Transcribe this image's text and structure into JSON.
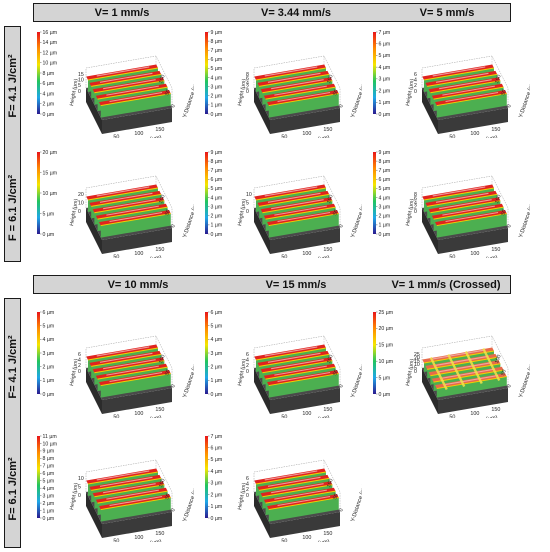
{
  "top_headers": [
    "V= 1 mm/s",
    "V= 3.44 mm/s",
    "V= 5 mm/s"
  ],
  "bottom_headers": [
    "V= 10 mm/s",
    "V= 15 mm/s",
    "V= 1 mm/s (Crossed)"
  ],
  "row_labels": [
    "F= 4.1 J/cm²",
    "F = 6.1 J/cm²",
    "F= 4.1 J/cm²",
    "F= 6.1 J/cm²"
  ],
  "axis_labels": {
    "x": "X-Distance (µm)",
    "y": "Y-Distance (µm)",
    "z": "Height (µm)"
  },
  "x_ticks": [
    "50",
    "100",
    "150"
  ],
  "panels": [
    {
      "id": "p11",
      "colorbar": [
        "16 µm",
        "14 µm",
        "12 µm",
        "10 µm",
        "8 µm",
        "6 µm",
        "4 µm",
        "2 µm",
        "0 µm"
      ],
      "z_ticks": [
        "15",
        "10",
        "5",
        "0"
      ],
      "y_ticks": [
        "100",
        "50",
        "0"
      ]
    },
    {
      "id": "p12",
      "colorbar": [
        "9 µm",
        "8 µm",
        "7 µm",
        "6 µm",
        "5 µm",
        "4 µm",
        "3 µm",
        "2 µm",
        "1 µm",
        "0 µm"
      ],
      "z_ticks": [
        "8",
        "6",
        "4",
        "2",
        "0"
      ],
      "y_ticks": [
        "100",
        "50",
        "0"
      ]
    },
    {
      "id": "p13",
      "colorbar": [
        "7 µm",
        "6 µm",
        "5 µm",
        "4 µm",
        "3 µm",
        "2 µm",
        "1 µm",
        "0 µm"
      ],
      "z_ticks": [
        "6",
        "4",
        "2",
        "0"
      ],
      "y_ticks": [
        "100",
        "50",
        "0"
      ]
    },
    {
      "id": "p21",
      "colorbar": [
        "20 µm",
        "15 µm",
        "10 µm",
        "5 µm",
        "0 µm"
      ],
      "z_ticks": [
        "20",
        "10",
        "0"
      ],
      "y_ticks": [
        "100",
        "50",
        "0"
      ]
    },
    {
      "id": "p22",
      "colorbar": [
        "9 µm",
        "8 µm",
        "7 µm",
        "6 µm",
        "5 µm",
        "4 µm",
        "3 µm",
        "2 µm",
        "1 µm",
        "0 µm"
      ],
      "z_ticks": [
        "10",
        "5",
        "0"
      ],
      "y_ticks": [
        "100",
        "50",
        "0"
      ]
    },
    {
      "id": "p23",
      "colorbar": [
        "9 µm",
        "8 µm",
        "7 µm",
        "6 µm",
        "5 µm",
        "4 µm",
        "3 µm",
        "2 µm",
        "1 µm",
        "0 µm"
      ],
      "z_ticks": [
        "8",
        "6",
        "4",
        "2",
        "0"
      ],
      "y_ticks": [
        "100",
        "50",
        "0"
      ]
    },
    {
      "id": "p31",
      "colorbar": [
        "6 µm",
        "5 µm",
        "4 µm",
        "3 µm",
        "2 µm",
        "1 µm",
        "0 µm"
      ],
      "z_ticks": [
        "6",
        "4",
        "2",
        "0"
      ],
      "y_ticks": [
        "100",
        "50",
        "0"
      ]
    },
    {
      "id": "p32",
      "colorbar": [
        "6 µm",
        "5 µm",
        "4 µm",
        "3 µm",
        "2 µm",
        "1 µm",
        "0 µm"
      ],
      "z_ticks": [
        "6",
        "4",
        "2",
        "0"
      ],
      "y_ticks": [
        "100",
        "50",
        "0"
      ]
    },
    {
      "id": "p33",
      "colorbar": [
        "25 µm",
        "20 µm",
        "15 µm",
        "10 µm",
        "5 µm",
        "0 µm"
      ],
      "z_ticks": [
        "25",
        "20",
        "15",
        "10",
        "5",
        "0"
      ],
      "y_ticks": [
        "100",
        "50",
        "0"
      ]
    },
    {
      "id": "p41",
      "colorbar": [
        "11 µm",
        "10 µm",
        "9 µm",
        "8 µm",
        "7 µm",
        "6 µm",
        "5 µm",
        "4 µm",
        "3 µm",
        "2 µm",
        "1 µm",
        "0 µm"
      ],
      "z_ticks": [
        "10",
        "5",
        "0"
      ],
      "y_ticks": [
        "100",
        "50",
        "0"
      ]
    },
    {
      "id": "p42",
      "colorbar": [
        "7 µm",
        "6 µm",
        "5 µm",
        "4 µm",
        "3 µm",
        "2 µm",
        "1 µm",
        "0 µm"
      ],
      "z_ticks": [
        "6",
        "4",
        "2",
        "0"
      ],
      "y_ticks": [
        "100",
        "50",
        "0"
      ]
    }
  ]
}
